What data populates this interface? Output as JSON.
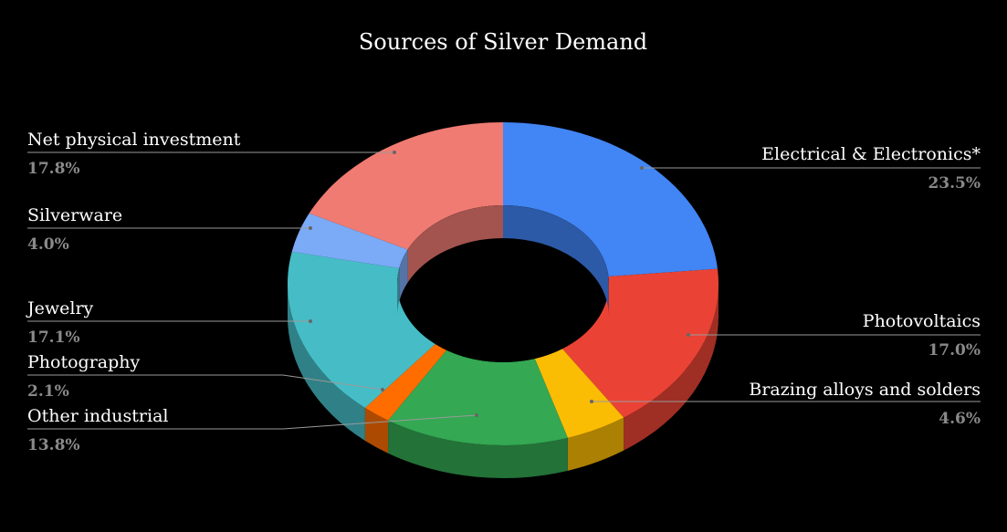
{
  "chart_data": {
    "type": "pie",
    "variant": "donut-3d",
    "title": "Sources of Silver Demand",
    "start_angle_deg": 0,
    "direction": "clockwise",
    "slices": [
      {
        "label": "Electrical & Electronics*",
        "value": 23.5,
        "value_label": "23.5%",
        "color": "#4285F4",
        "label_side": "right"
      },
      {
        "label": "Photovoltaics",
        "value": 17.0,
        "value_label": "17.0%",
        "color": "#EA4335",
        "label_side": "right"
      },
      {
        "label": "Brazing alloys and solders",
        "value": 4.6,
        "value_label": "4.6%",
        "color": "#FBBC04",
        "label_side": "right"
      },
      {
        "label": "Other industrial",
        "value": 13.8,
        "value_label": "13.8%",
        "color": "#34A853",
        "label_side": "left"
      },
      {
        "label": "Photography",
        "value": 2.1,
        "value_label": "2.1%",
        "color": "#FF6D01",
        "label_side": "left"
      },
      {
        "label": "Jewelry",
        "value": 17.1,
        "value_label": "17.1%",
        "color": "#46BDC6",
        "label_side": "left"
      },
      {
        "label": "Silverware",
        "value": 4.0,
        "value_label": "4.0%",
        "color": "#7BAAF7",
        "label_side": "left"
      },
      {
        "label": "Net physical investment",
        "value": 17.8,
        "value_label": "17.8%",
        "color": "#F07B72",
        "label_side": "left"
      }
    ],
    "legend": "none",
    "background": "#000000"
  }
}
